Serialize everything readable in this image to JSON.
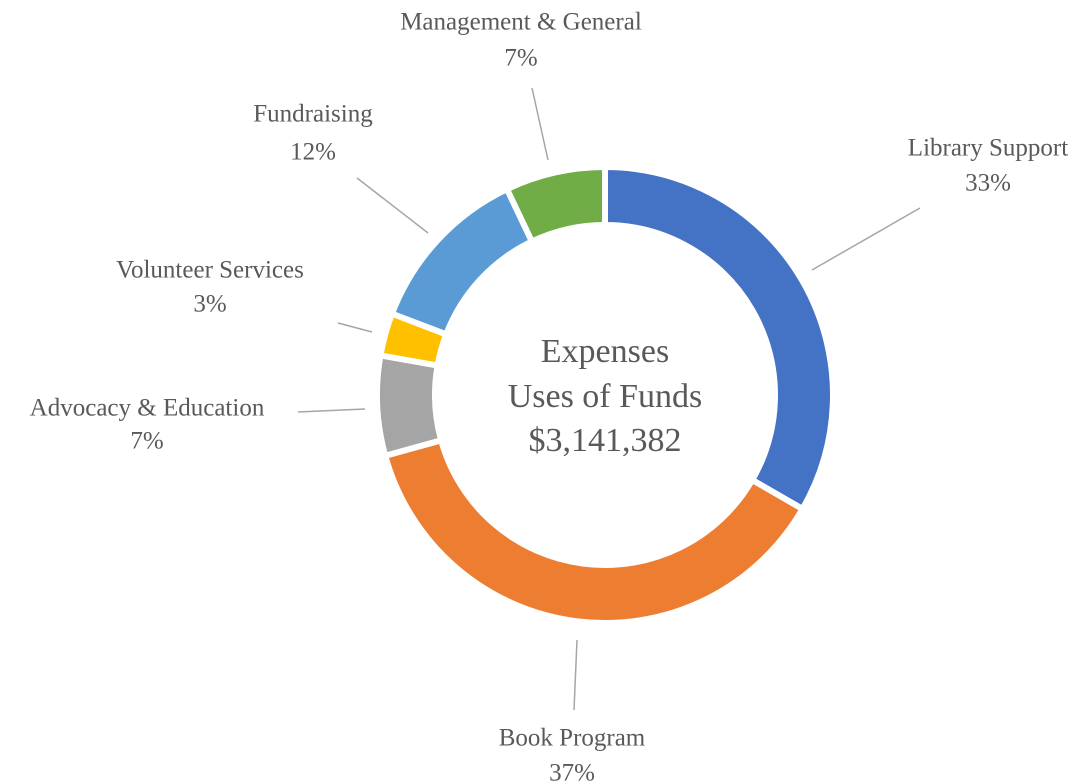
{
  "chart_data": {
    "type": "donut",
    "categories": [
      "Library Support",
      "Book Program",
      "Advocacy & Education",
      "Volunteer Services",
      "Fundraising",
      "Management & General"
    ],
    "values": [
      33,
      37,
      7,
      3,
      12,
      7
    ],
    "value_labels": [
      "33%",
      "37%",
      "7%",
      "3%",
      "12%",
      "7%"
    ],
    "colors": [
      "#4472c4",
      "#ed7d31",
      "#a5a5a5",
      "#ffc000",
      "#5b9bd5",
      "#70ad47"
    ],
    "center_label": [
      "Expenses",
      "Uses of Funds",
      "$3,141,382"
    ]
  }
}
